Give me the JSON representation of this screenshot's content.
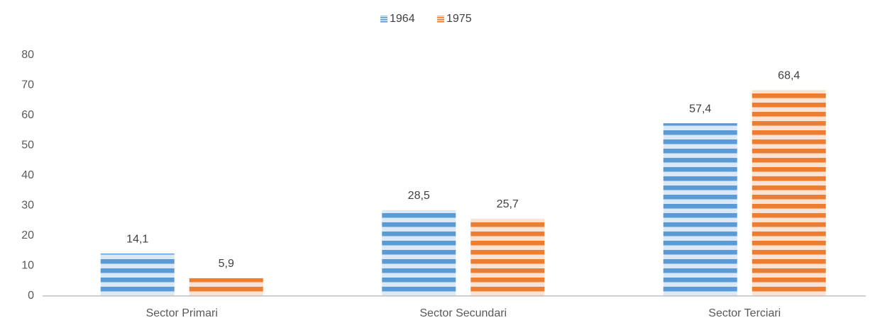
{
  "chart_data": {
    "type": "bar",
    "categories": [
      "Sector Primari",
      "Sector Secundari",
      "Sector Terciari"
    ],
    "series": [
      {
        "name": "1964",
        "color": "#5b9bd5",
        "values": [
          14.1,
          28.5,
          57.4
        ],
        "value_labels": [
          "14,1",
          "28,5",
          "57,4"
        ]
      },
      {
        "name": "1975",
        "color": "#ed7d31",
        "values": [
          5.9,
          25.7,
          68.4
        ],
        "value_labels": [
          "5,9",
          "25,7",
          "68,4"
        ]
      }
    ],
    "ylim": [
      0,
      80
    ],
    "yticks": [
      0,
      10,
      20,
      30,
      40,
      50,
      60,
      70,
      80
    ],
    "legend": "top",
    "grid": false
  }
}
